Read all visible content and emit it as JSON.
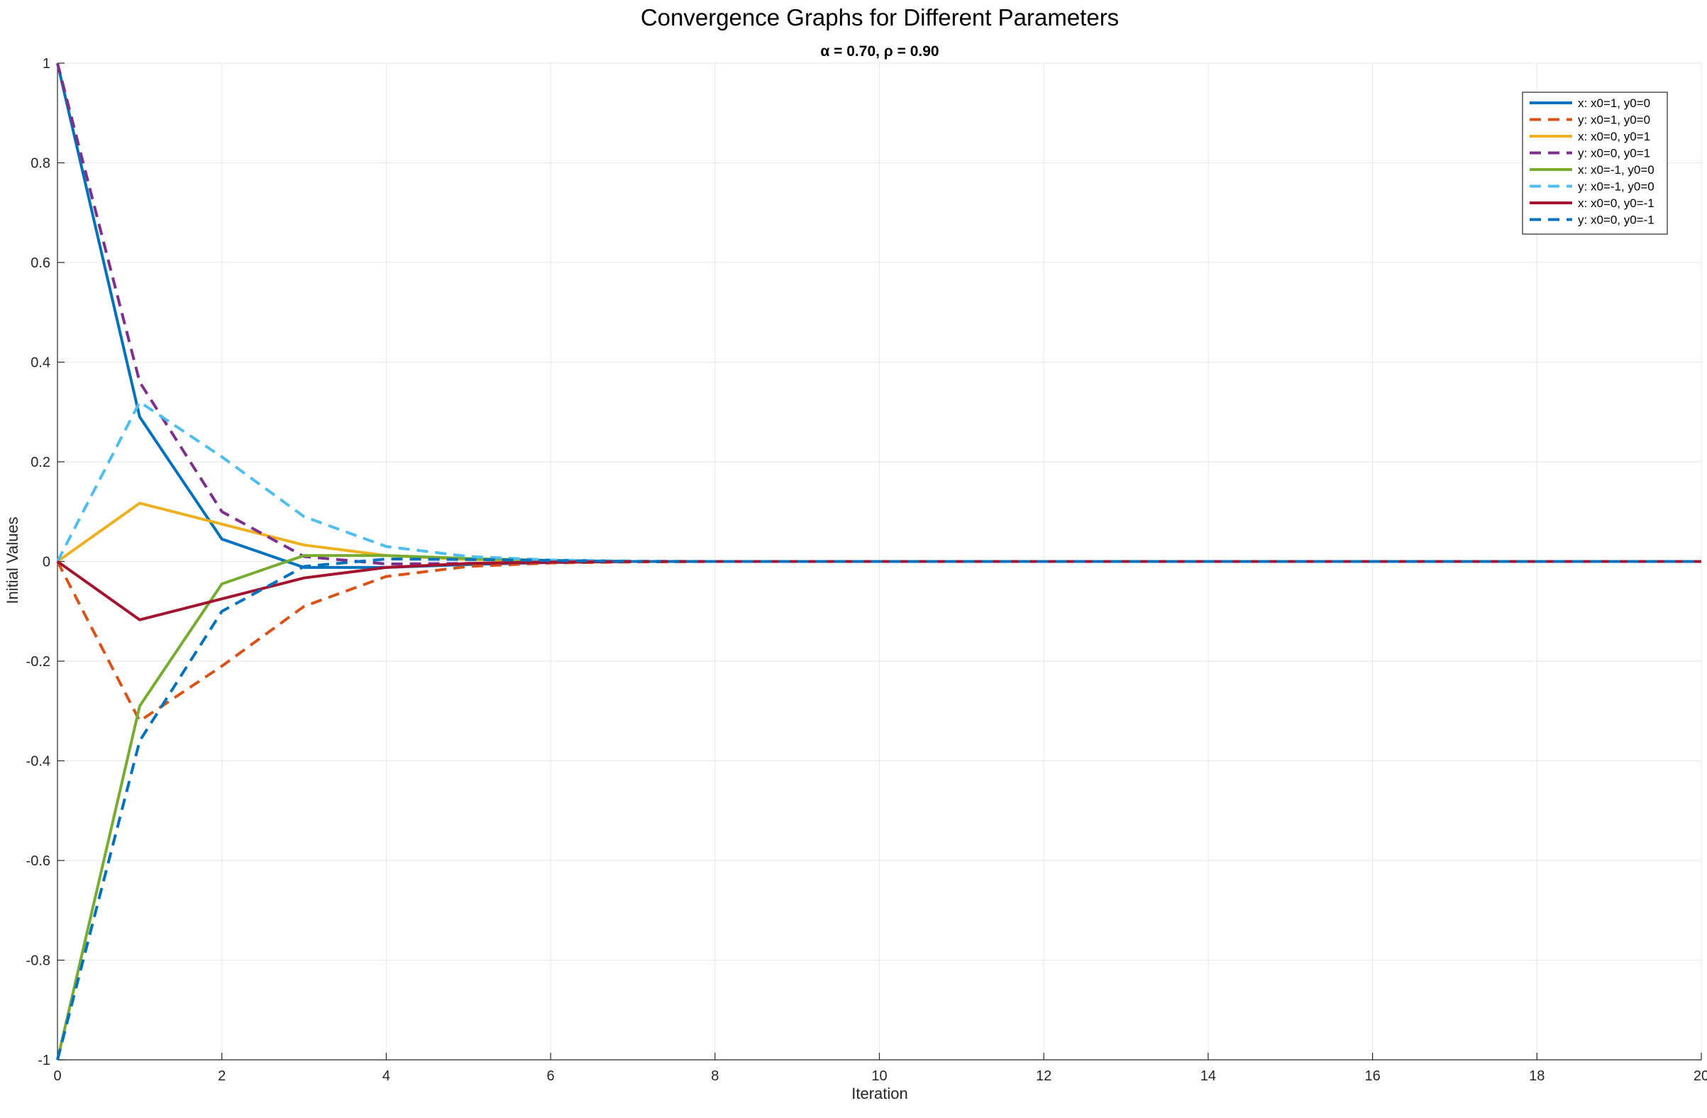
{
  "chart_data": {
    "type": "line",
    "title": "Convergence Graphs for Different Parameters",
    "subtitle": "α = 0.70, ρ = 0.90",
    "xlabel": "Iteration",
    "ylabel": "Initial Values",
    "xlim": [
      0,
      20
    ],
    "ylim": [
      -1,
      1
    ],
    "xticks": [
      0,
      2,
      4,
      6,
      8,
      10,
      12,
      14,
      16,
      18,
      20
    ],
    "yticks": [
      -1,
      -0.8,
      -0.6,
      -0.4,
      -0.2,
      0,
      0.2,
      0.4,
      0.6,
      0.8,
      1
    ],
    "xtick_labels": [
      "0",
      "2",
      "4",
      "6",
      "8",
      "10",
      "12",
      "14",
      "16",
      "18",
      "20"
    ],
    "ytick_labels": [
      "-1",
      "-0.8",
      "-0.6",
      "-0.4",
      "-0.2",
      "0",
      "0.2",
      "0.4",
      "0.6",
      "0.8",
      "1"
    ],
    "grid": true,
    "legend_position": "top-right",
    "x": [
      0,
      1,
      2,
      3,
      4,
      5,
      6,
      7,
      8,
      9,
      10,
      11,
      12,
      13,
      14,
      15,
      16,
      17,
      18,
      19,
      20
    ],
    "series": [
      {
        "name": "x: x0=1, y0=0",
        "color": "#0072BD",
        "dash": false,
        "values": [
          1,
          0.29,
          0.045,
          -0.012,
          -0.012,
          -0.006,
          -0.002,
          0,
          0,
          0,
          0,
          0,
          0,
          0,
          0,
          0,
          0,
          0,
          0,
          0,
          0
        ]
      },
      {
        "name": "y: x0=1, y0=0",
        "color": "#D95319",
        "dash": true,
        "values": [
          0,
          -0.32,
          -0.21,
          -0.09,
          -0.03,
          -0.01,
          -0.003,
          -0.001,
          0,
          0,
          0,
          0,
          0,
          0,
          0,
          0,
          0,
          0,
          0,
          0,
          0
        ]
      },
      {
        "name": "x: x0=0, y0=1",
        "color": "#EDB120",
        "dash": false,
        "values": [
          0,
          0.117,
          0.075,
          0.033,
          0.012,
          0.004,
          0.001,
          0,
          0,
          0,
          0,
          0,
          0,
          0,
          0,
          0,
          0,
          0,
          0,
          0,
          0
        ]
      },
      {
        "name": "y: x0=0, y0=1",
        "color": "#7E2F8E",
        "dash": true,
        "values": [
          1,
          0.36,
          0.1,
          0.01,
          -0.005,
          -0.004,
          -0.002,
          0,
          0,
          0,
          0,
          0,
          0,
          0,
          0,
          0,
          0,
          0,
          0,
          0,
          0
        ]
      },
      {
        "name": "x: x0=-1, y0=0",
        "color": "#77AC30",
        "dash": false,
        "values": [
          -1,
          -0.29,
          -0.045,
          0.012,
          0.012,
          0.006,
          0.002,
          0,
          0,
          0,
          0,
          0,
          0,
          0,
          0,
          0,
          0,
          0,
          0,
          0,
          0
        ]
      },
      {
        "name": "y: x0=-1, y0=0",
        "color": "#4DBEEE",
        "dash": true,
        "values": [
          0,
          0.32,
          0.21,
          0.09,
          0.03,
          0.01,
          0.003,
          0.001,
          0,
          0,
          0,
          0,
          0,
          0,
          0,
          0,
          0,
          0,
          0,
          0,
          0
        ]
      },
      {
        "name": "x: x0=0, y0=-1",
        "color": "#A2142F",
        "dash": false,
        "values": [
          0,
          -0.117,
          -0.075,
          -0.033,
          -0.012,
          -0.004,
          -0.001,
          0,
          0,
          0,
          0,
          0,
          0,
          0,
          0,
          0,
          0,
          0,
          0,
          0,
          0
        ]
      },
      {
        "name": "y: x0=0, y0=-1",
        "color": "#0072BD",
        "dash": true,
        "values": [
          -1,
          -0.36,
          -0.1,
          -0.01,
          0.005,
          0.004,
          0.002,
          0,
          0,
          0,
          0,
          0,
          0,
          0,
          0,
          0,
          0,
          0,
          0,
          0,
          0
        ]
      }
    ]
  }
}
